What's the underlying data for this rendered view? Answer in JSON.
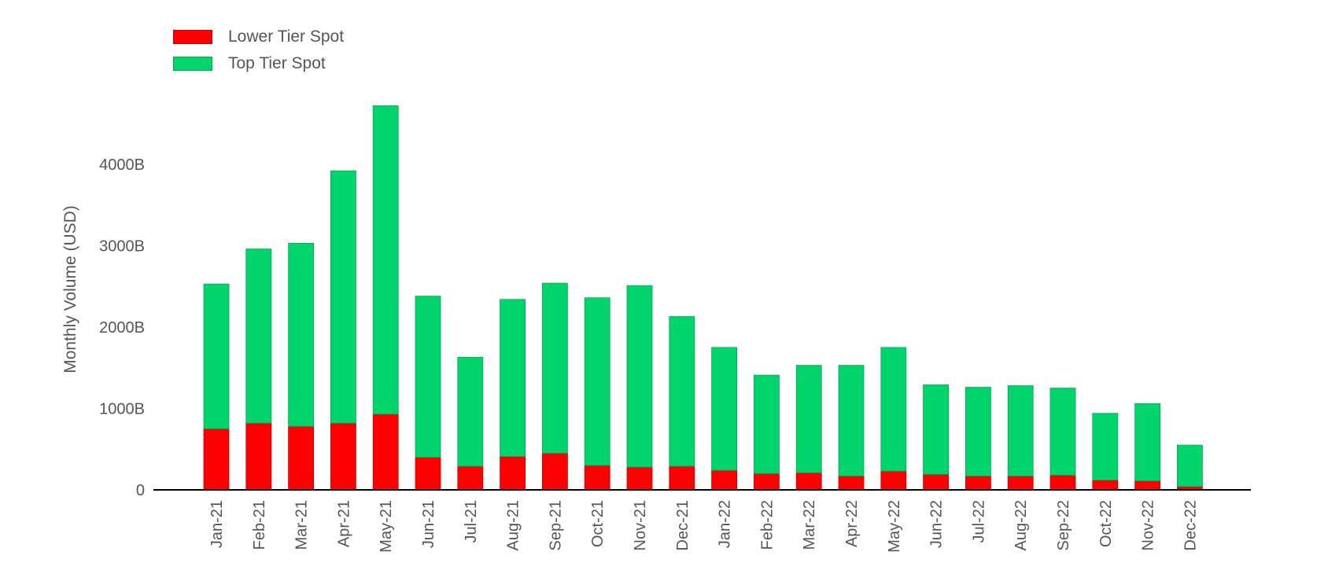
{
  "chart_data": {
    "type": "bar",
    "stacked": true,
    "title": "",
    "xlabel": "",
    "ylabel": "Monthly Volume (USD)",
    "ylim": [
      0,
      4800
    ],
    "yticks": [
      0,
      1000,
      2000,
      3000,
      4000
    ],
    "ytick_labels": [
      "0",
      "1000B",
      "2000B",
      "3000B",
      "4000B"
    ],
    "grid": false,
    "legend_position": "top-left",
    "categories": [
      "Jan-21",
      "Feb-21",
      "Mar-21",
      "Apr-21",
      "May-21",
      "Jun-21",
      "Jul-21",
      "Aug-21",
      "Sep-21",
      "Oct-21",
      "Nov-21",
      "Dec-21",
      "Jan-22",
      "Feb-22",
      "Mar-22",
      "Apr-22",
      "May-22",
      "Jun-22",
      "Jul-22",
      "Aug-22",
      "Sep-22",
      "Oct-22",
      "Nov-22",
      "Dec-22"
    ],
    "series": [
      {
        "name": "Lower Tier Spot",
        "color": "#ff0000",
        "values": [
          750,
          820,
          780,
          820,
          930,
          400,
          290,
          410,
          450,
          300,
          280,
          290,
          240,
          200,
          210,
          170,
          230,
          190,
          170,
          170,
          180,
          120,
          110,
          40
        ]
      },
      {
        "name": "Top Tier Spot",
        "color": "#00d46a",
        "values": [
          1780,
          2140,
          2250,
          3100,
          3790,
          1980,
          1340,
          1930,
          2090,
          2060,
          2230,
          1840,
          1510,
          1210,
          1320,
          1360,
          1520,
          1100,
          1090,
          1110,
          1070,
          820,
          950,
          510
        ]
      }
    ]
  }
}
